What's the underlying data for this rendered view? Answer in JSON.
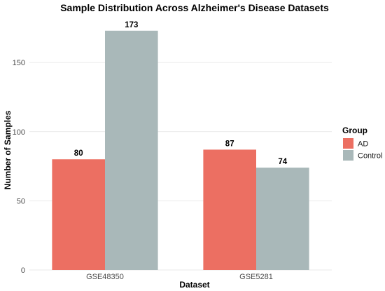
{
  "chart_data": {
    "type": "bar",
    "title": "Sample Distribution Across Alzheimer's Disease Datasets",
    "xlabel": "Dataset",
    "ylabel": "Number of Samples",
    "categories": [
      "GSE48350",
      "GSE5281"
    ],
    "series": [
      {
        "name": "AD",
        "color": "#ec6f62",
        "values": [
          80,
          87
        ]
      },
      {
        "name": "Control",
        "color": "#a9b8b9",
        "values": [
          173,
          74
        ]
      }
    ],
    "yticks": [
      0,
      50,
      100,
      150
    ],
    "ylim": [
      0,
      181
    ],
    "grid": true,
    "legend": {
      "title": "Group",
      "position": "right"
    }
  }
}
